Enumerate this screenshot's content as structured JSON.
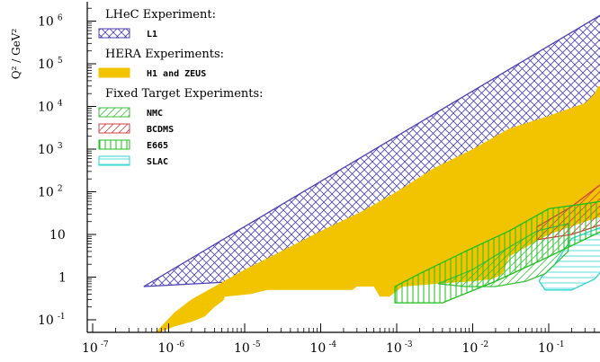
{
  "chart_data": {
    "type": "area",
    "title": "",
    "ylabel": "Q² / GeV²",
    "xlabel": "",
    "x_scale": "log",
    "y_scale": "log",
    "xlim": [
      1e-07,
      1
    ],
    "ylim": [
      0.05,
      3000000.0
    ],
    "x_ticks": [
      {
        "value": 1e-07,
        "base": "10",
        "exp": "-7"
      },
      {
        "value": 1e-06,
        "base": "10",
        "exp": "-6"
      },
      {
        "value": 1e-05,
        "base": "10",
        "exp": "-5"
      },
      {
        "value": 0.0001,
        "base": "10",
        "exp": "-4"
      },
      {
        "value": 0.001,
        "base": "10",
        "exp": "-3"
      },
      {
        "value": 0.01,
        "base": "10",
        "exp": "-2"
      },
      {
        "value": 0.1,
        "base": "10",
        "exp": "-1"
      }
    ],
    "y_ticks": [
      {
        "value": 1000000.0,
        "base": "10",
        "exp": "6"
      },
      {
        "value": 100000.0,
        "base": "10",
        "exp": "5"
      },
      {
        "value": 10000.0,
        "base": "10",
        "exp": "4"
      },
      {
        "value": 1000.0,
        "base": "10",
        "exp": "3"
      },
      {
        "value": 100.0,
        "base": "10",
        "exp": "2"
      },
      {
        "value": 10,
        "base": "10",
        "exp": ""
      },
      {
        "value": 1,
        "base": "1",
        "exp": ""
      },
      {
        "value": 0.1,
        "base": "10",
        "exp": "-1"
      }
    ],
    "legend": {
      "placement": "top-left",
      "groups": [
        {
          "heading": "LHeC Experiment:",
          "items": [
            {
              "label": "L1",
              "series": "lhec"
            }
          ]
        },
        {
          "heading": "HERA Experiments:",
          "items": [
            {
              "label": "H1 and ZEUS",
              "series": "hera"
            }
          ]
        },
        {
          "heading": "Fixed Target Experiments:",
          "items": [
            {
              "label": "NMC",
              "series": "nmc"
            },
            {
              "label": "BCDMS",
              "series": "bcdms"
            },
            {
              "label": "E665",
              "series": "e665"
            },
            {
              "label": "SLAC",
              "series": "slac"
            }
          ]
        }
      ]
    },
    "series": [
      {
        "id": "lhec",
        "name": "L1",
        "color": "#4b3fb5",
        "fill": "crosshatch",
        "points": [
          [
            4.7e-07,
            0.6
          ],
          [
            0.0015,
            1.3
          ],
          [
            1,
            2000
          ],
          [
            1,
            3000000.0
          ]
        ]
      },
      {
        "id": "hera",
        "name": "H1 and ZEUS",
        "color": "#f2c400",
        "fill": "solid",
        "points": [
          [
            6.3e-07,
            0.045
          ],
          [
            1.2e-06,
            0.07
          ],
          [
            2e-06,
            0.09
          ],
          [
            3e-06,
            0.12
          ],
          [
            4e-06,
            0.2
          ],
          [
            5.2e-06,
            0.28
          ],
          [
            5.5e-06,
            0.35
          ],
          [
            1.2e-05,
            0.4
          ],
          [
            2e-05,
            0.5
          ],
          [
            0.00026,
            0.5
          ],
          [
            0.0003,
            0.6
          ],
          [
            0.0005,
            0.6
          ],
          [
            0.0006,
            0.35
          ],
          [
            0.0008,
            0.35
          ],
          [
            0.0012,
            0.6
          ],
          [
            0.0035,
            0.7
          ],
          [
            0.01,
            0.8
          ],
          [
            0.018,
            0.9
          ],
          [
            0.025,
            1.2
          ],
          [
            0.03,
            3
          ],
          [
            0.06,
            6
          ],
          [
            0.1,
            10
          ],
          [
            0.3,
            20
          ],
          [
            0.65,
            30
          ],
          [
            0.65,
            25000
          ],
          [
            0.45,
            30000
          ],
          [
            0.4,
            20000
          ],
          [
            0.3,
            12000
          ],
          [
            0.1,
            6000
          ],
          [
            0.03,
            3000
          ],
          [
            0.01,
            1000
          ],
          [
            0.003,
            350
          ],
          [
            0.001,
            100
          ],
          [
            0.00035,
            35
          ],
          [
            0.0001,
            12
          ],
          [
            3e-05,
            4
          ],
          [
            1e-05,
            1.5
          ],
          [
            4e-06,
            0.6
          ],
          [
            2e-06,
            0.3
          ],
          [
            1.2e-06,
            0.15
          ]
        ]
      },
      {
        "id": "nmc",
        "name": "NMC",
        "color": "#3cbf3c",
        "fill": "hatch",
        "points": [
          [
            0.0035,
            0.7
          ],
          [
            0.01,
            1.5
          ],
          [
            0.03,
            5
          ],
          [
            0.07,
            12
          ],
          [
            0.18,
            18
          ],
          [
            0.18,
            4
          ],
          [
            0.09,
            1.2
          ],
          [
            0.05,
            0.8
          ],
          [
            0.02,
            0.6
          ],
          [
            0.008,
            0.6
          ]
        ]
      },
      {
        "id": "bcdms",
        "name": "BCDMS",
        "color": "#d04040",
        "fill": "hatch",
        "points": [
          [
            0.07,
            7.5
          ],
          [
            0.2,
            10
          ],
          [
            0.65,
            20
          ],
          [
            0.85,
            45
          ],
          [
            0.85,
            240
          ],
          [
            0.6,
            200
          ],
          [
            0.2,
            45
          ],
          [
            0.07,
            15
          ]
        ]
      },
      {
        "id": "e665",
        "name": "E665",
        "color": "#1ebe1e",
        "fill": "vertical",
        "points": [
          [
            0.00095,
            0.25
          ],
          [
            0.004,
            0.25
          ],
          [
            0.02,
            0.8
          ],
          [
            0.1,
            3
          ],
          [
            0.5,
            12
          ],
          [
            0.5,
            60
          ],
          [
            0.25,
            50
          ],
          [
            0.1,
            40
          ],
          [
            0.03,
            12
          ],
          [
            0.008,
            4
          ],
          [
            0.002,
            1.2
          ],
          [
            0.00095,
            0.6
          ]
        ]
      },
      {
        "id": "slac",
        "name": "SLAC",
        "color": "#2fd3d3",
        "fill": "horizontal",
        "points": [
          [
            0.075,
            0.8
          ],
          [
            0.09,
            0.5
          ],
          [
            0.2,
            0.5
          ],
          [
            0.4,
            0.9
          ],
          [
            0.6,
            2
          ],
          [
            0.9,
            12
          ],
          [
            0.9,
            18
          ],
          [
            0.5,
            15
          ],
          [
            0.2,
            8
          ],
          [
            0.12,
            2
          ],
          [
            0.08,
            1
          ]
        ]
      }
    ]
  }
}
